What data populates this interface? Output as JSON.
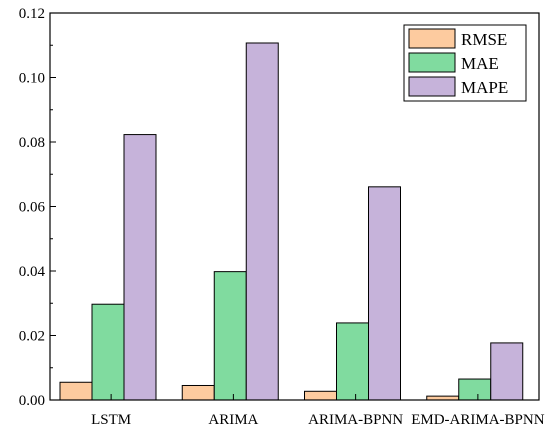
{
  "chart_data": {
    "type": "bar",
    "title": "",
    "xlabel": "",
    "ylabel": "",
    "categories": [
      "LSTM",
      "ARIMA",
      "ARIMA-BPNN",
      "EMD-ARIMA-BPNN"
    ],
    "ylim": [
      0,
      0.12
    ],
    "yticks": [
      "0.00",
      "0.02",
      "0.04",
      "0.06",
      "0.08",
      "0.10",
      "0.12"
    ],
    "series": [
      {
        "name": "RMSE",
        "color": "#FDCB9F",
        "values": [
          0.0055,
          0.0045,
          0.0027,
          0.0012
        ]
      },
      {
        "name": "MAE",
        "color": "#80DB9F",
        "values": [
          0.0297,
          0.0398,
          0.0239,
          0.0065
        ]
      },
      {
        "name": "MAPE",
        "color": "#C6B3DA",
        "values": [
          0.0823,
          0.1107,
          0.0661,
          0.0177
        ]
      }
    ],
    "grid": false,
    "legend_position": "top-right"
  }
}
